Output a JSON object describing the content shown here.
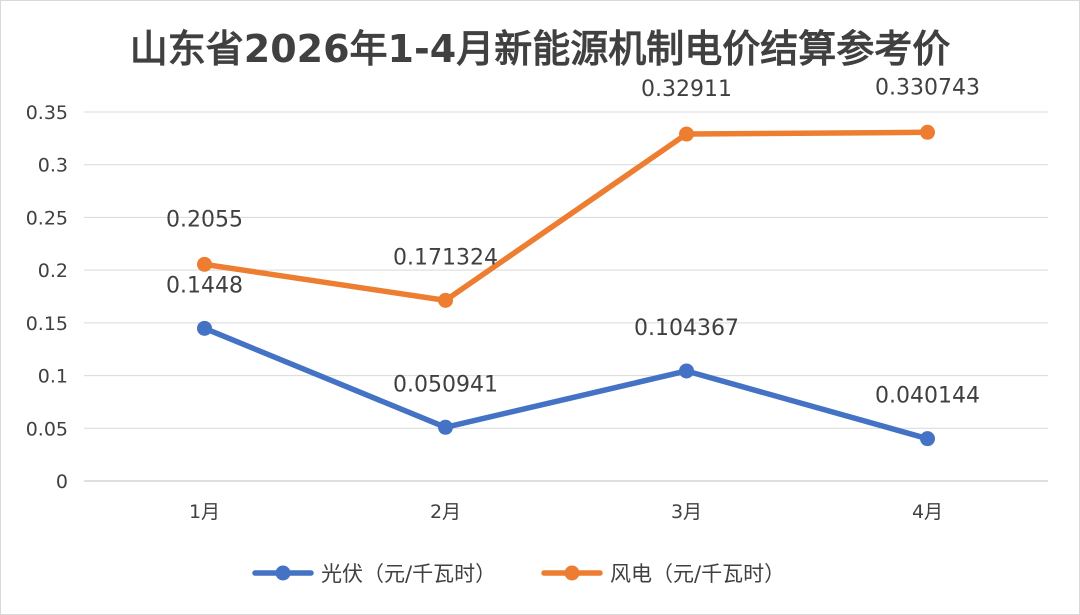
{
  "chart_data": {
    "type": "line",
    "title": "山东省2026年1-4月新能源机制电价结算参考价",
    "categories": [
      "1月",
      "2月",
      "3月",
      "4月"
    ],
    "ylim": [
      0,
      0.35
    ],
    "yticks": [
      "0",
      "0.05",
      "0.1",
      "0.15",
      "0.2",
      "0.25",
      "0.3",
      "0.35"
    ],
    "grid": true,
    "legend_position": "bottom",
    "series": [
      {
        "name": "光伏（元/千瓦时）",
        "color": "#4472C4",
        "values": [
          0.1448,
          0.050941,
          0.104367,
          0.040144
        ],
        "labels": [
          "0.1448",
          "0.050941",
          "0.104367",
          "0.040144"
        ]
      },
      {
        "name": "风电（元/千瓦时）",
        "color": "#ED7D31",
        "values": [
          0.2055,
          0.171324,
          0.32911,
          0.330743
        ],
        "labels": [
          "0.2055",
          "0.171324",
          "0.32911",
          "0.330743"
        ]
      }
    ]
  }
}
